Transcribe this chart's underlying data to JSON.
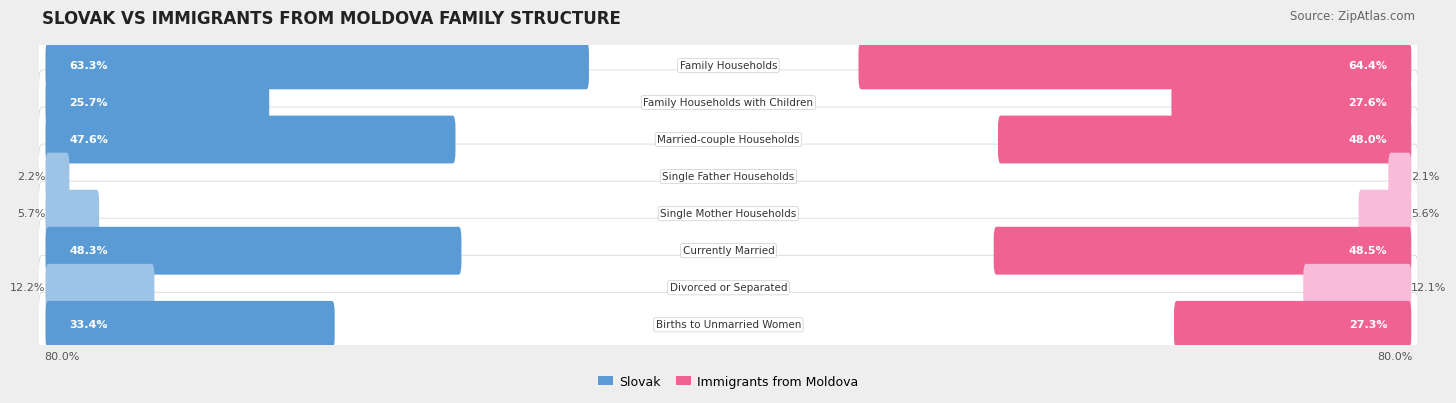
{
  "title": "SLOVAK VS IMMIGRANTS FROM MOLDOVA FAMILY STRUCTURE",
  "source": "Source: ZipAtlas.com",
  "categories": [
    "Family Households",
    "Family Households with Children",
    "Married-couple Households",
    "Single Father Households",
    "Single Mother Households",
    "Currently Married",
    "Divorced or Separated",
    "Births to Unmarried Women"
  ],
  "slovak_values": [
    63.3,
    25.7,
    47.6,
    2.2,
    5.7,
    48.3,
    12.2,
    33.4
  ],
  "moldova_values": [
    64.4,
    27.6,
    48.0,
    2.1,
    5.6,
    48.5,
    12.1,
    27.3
  ],
  "slovak_color_large": "#5b9bd5",
  "slovak_color_small": "#9dc3e6",
  "moldova_color_large": "#f06292",
  "moldova_color_small": "#f8bbd9",
  "slovak_label": "Slovak",
  "moldova_label": "Immigrants from Moldova",
  "x_max": 80.0,
  "background_color": "#eeeeee",
  "row_bg_color": "#ffffff",
  "row_bg_edge": "#d0d0d0",
  "title_fontsize": 12,
  "source_fontsize": 8.5,
  "bar_label_fontsize": 8,
  "category_fontsize": 7.5,
  "large_threshold": 15
}
